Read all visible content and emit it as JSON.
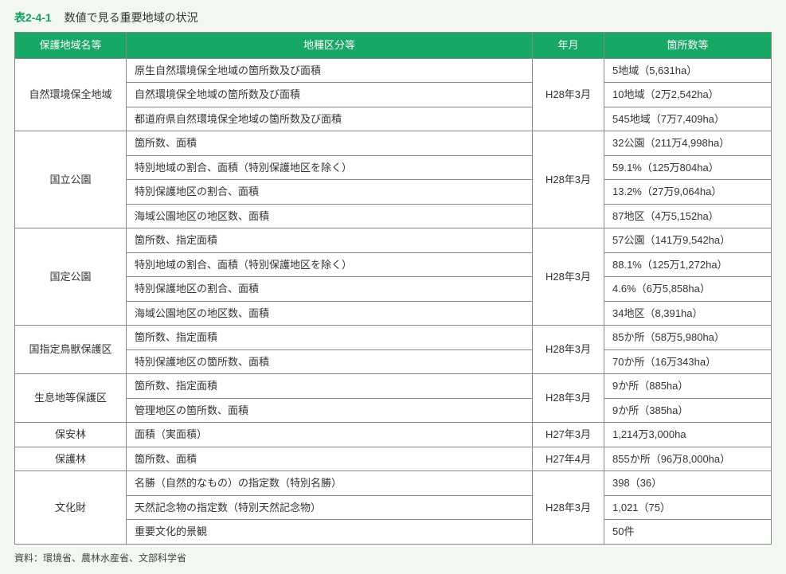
{
  "caption": {
    "num": "表2-4-1",
    "title": "数値で見る重要地域の状況"
  },
  "headers": {
    "name": "保護地域名等",
    "class": "地種区分等",
    "date": "年月",
    "count": "箇所数等"
  },
  "groups": [
    {
      "name": "自然環境保全地域",
      "date": "H28年3月",
      "rows": [
        {
          "class": "原生自然環境保全地域の箇所数及び面積",
          "count": "5地域（5,631ha）"
        },
        {
          "class": "自然環境保全地域の箇所数及び面積",
          "count": "10地域（2万2,542ha）"
        },
        {
          "class": "都道府県自然環境保全地域の箇所数及び面積",
          "count": "545地域（7万7,409ha）"
        }
      ]
    },
    {
      "name": "国立公園",
      "date": "H28年3月",
      "rows": [
        {
          "class": "箇所数、面積",
          "count": "32公園（211万4,998ha）"
        },
        {
          "class": "特別地域の割合、面積（特別保護地区を除く）",
          "count": "59.1%（125万804ha）"
        },
        {
          "class": "特別保護地区の割合、面積",
          "count": "13.2%（27万9,064ha）"
        },
        {
          "class": "海域公園地区の地区数、面積",
          "count": "87地区（4万5,152ha）"
        }
      ]
    },
    {
      "name": "国定公園",
      "date": "H28年3月",
      "rows": [
        {
          "class": "箇所数、指定面積",
          "count": "57公園（141万9,542ha）"
        },
        {
          "class": "特別地域の割合、面積（特別保護地区を除く）",
          "count": "88.1%（125万1,272ha）"
        },
        {
          "class": "特別保護地区の割合、面積",
          "count": "4.6%（6万5,858ha）"
        },
        {
          "class": "海域公園地区の地区数、面積",
          "count": "34地区（8,391ha）"
        }
      ]
    },
    {
      "name": "国指定鳥獣保護区",
      "date": "H28年3月",
      "rows": [
        {
          "class": "箇所数、指定面積",
          "count": "85か所（58万5,980ha）"
        },
        {
          "class": "特別保護地区の箇所数、面積",
          "count": "70か所（16万343ha）"
        }
      ]
    },
    {
      "name": "生息地等保護区",
      "date": "H28年3月",
      "rows": [
        {
          "class": "箇所数、指定面積",
          "count": "9か所（885ha）"
        },
        {
          "class": "管理地区の箇所数、面積",
          "count": "9か所（385ha）"
        }
      ]
    },
    {
      "name": "保安林",
      "date": "H27年3月",
      "rows": [
        {
          "class": "面積（実面積）",
          "count": "1,214万3,000ha"
        }
      ]
    },
    {
      "name": "保護林",
      "date": "H27年4月",
      "rows": [
        {
          "class": "箇所数、面積",
          "count": "855か所（96万8,000ha）"
        }
      ]
    },
    {
      "name": "文化財",
      "date": "H28年3月",
      "rows": [
        {
          "class": "名勝（自然的なもの）の指定数（特別名勝）",
          "count": "398（36）"
        },
        {
          "class": "天然記念物の指定数（特別天然記念物）",
          "count": "1,021（75）"
        },
        {
          "class": "重要文化的景観",
          "count": "50件"
        }
      ]
    }
  ],
  "source": "資料：環境省、農林水産省、文部科学省"
}
